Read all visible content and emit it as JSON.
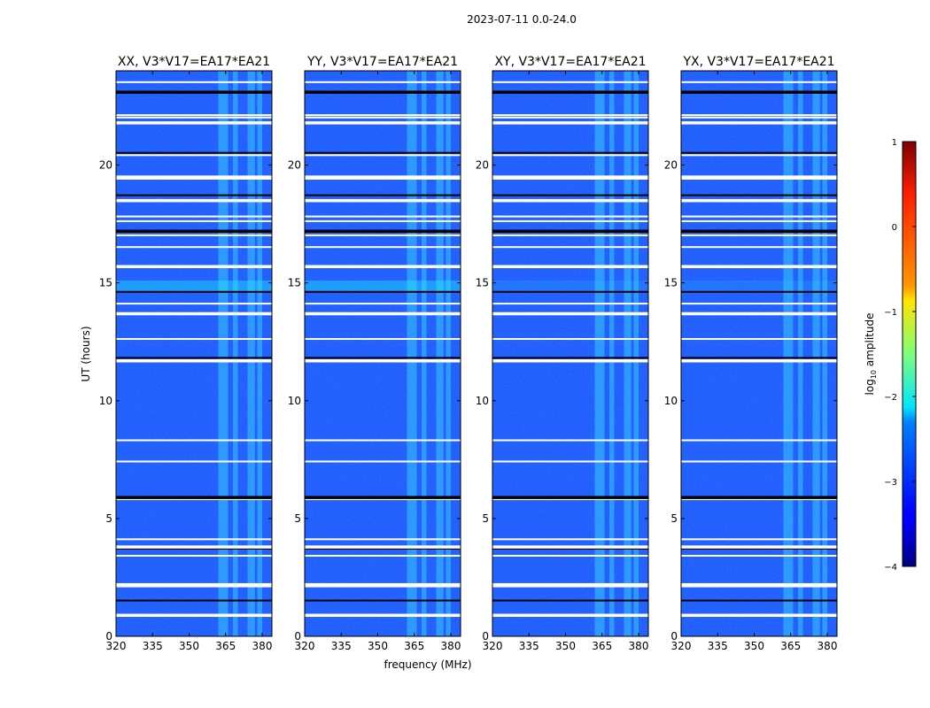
{
  "figure": {
    "suptitle": "2023-07-11 0.0-24.0",
    "ylabel": "UT (hours)",
    "xlabel": "frequency (MHz)"
  },
  "chart_data": {
    "type": "heatmap",
    "panels": [
      {
        "title": "XX, V3*V17=EA17*EA21",
        "polarization": "XX"
      },
      {
        "title": "YY, V3*V17=EA17*EA21",
        "polarization": "YY"
      },
      {
        "title": "XY, V3*V17=EA17*EA21",
        "polarization": "XY"
      },
      {
        "title": "YX, V3*V17=EA17*EA21",
        "polarization": "YX"
      }
    ],
    "x_range": [
      320,
      384
    ],
    "y_range": [
      0,
      24
    ],
    "x_ticks": [
      320,
      335,
      350,
      365,
      380
    ],
    "y_ticks": [
      0,
      5,
      10,
      15,
      20
    ],
    "colorbar": {
      "label_main": "log",
      "label_sub": "10",
      "label_tail": " amplitude",
      "range": [
        -4,
        1
      ],
      "ticks": [
        1,
        0,
        -1,
        -2,
        -3,
        -4
      ],
      "tick_labels": [
        "1",
        "0",
        "−1",
        "−2",
        "−3",
        "−4"
      ],
      "colormap": "jet"
    },
    "flagged_rows_hours": [
      0.9,
      1.5,
      2.1,
      2.2,
      3.4,
      3.7,
      3.8,
      4.1,
      5.8,
      5.9,
      7.4,
      8.3,
      11.7,
      11.8,
      12.6,
      13.7,
      14.1,
      14.6,
      15.7,
      16.5,
      17.0,
      17.2,
      17.6,
      17.8,
      18.5,
      18.7,
      19.4,
      19.5,
      20.4,
      20.5,
      21.8,
      22.0,
      22.1,
      23.1,
      23.5
    ],
    "rfi_channels_mhz": [
      [
        362,
        366
      ],
      [
        368,
        370
      ],
      [
        374,
        377
      ],
      [
        378,
        380
      ]
    ],
    "bright_band_hours": [
      [
        14.6,
        15.1
      ]
    ],
    "colors": {
      "background": "#1f4dff",
      "flag": "#ffffff",
      "rfi": "#39e0ff",
      "bright": "#1fa8ff"
    }
  }
}
